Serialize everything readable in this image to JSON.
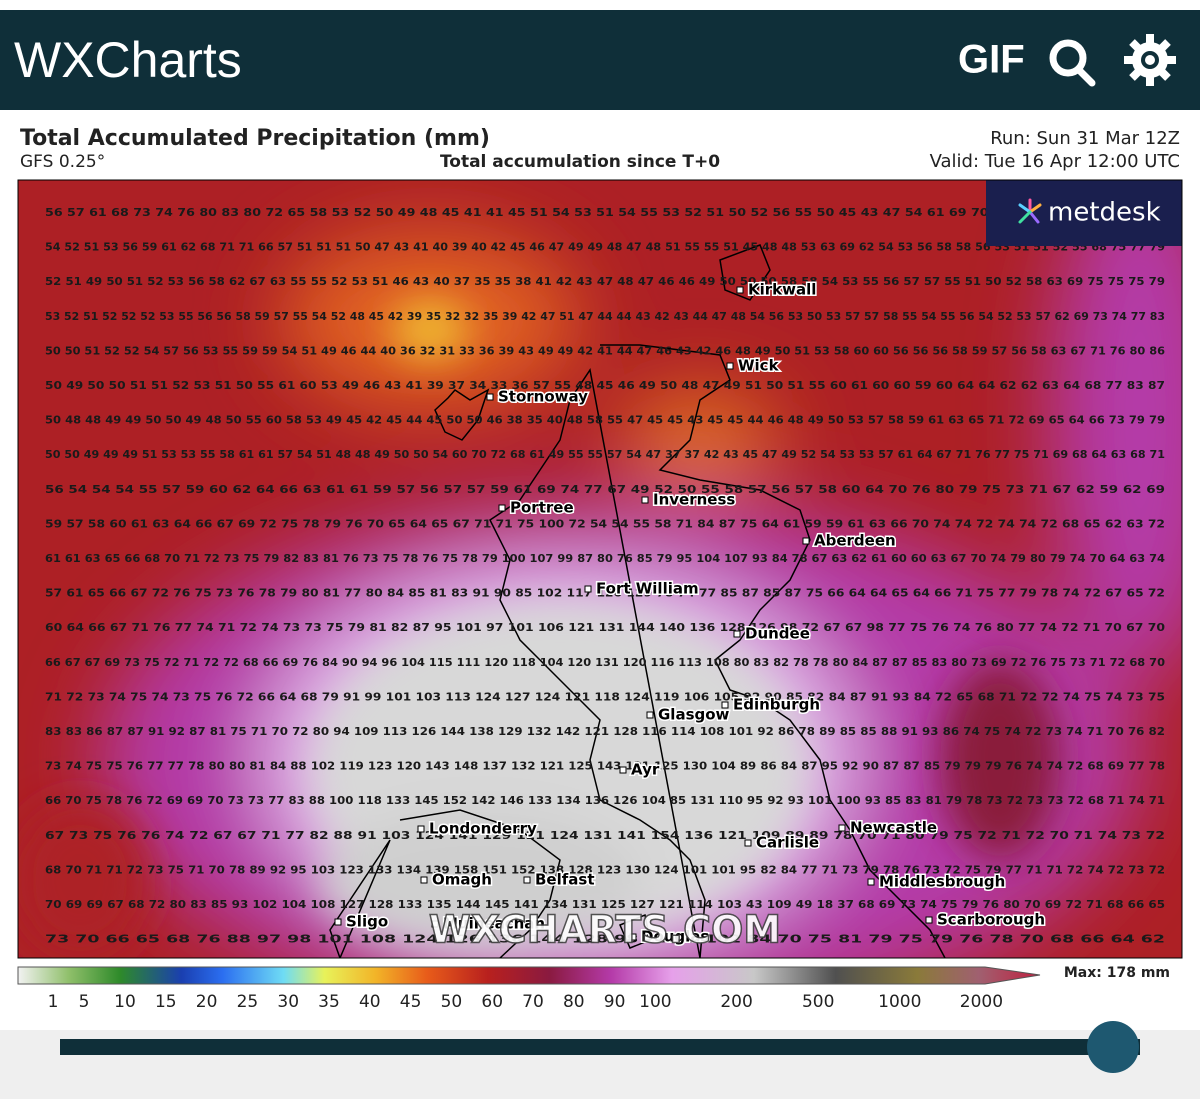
{
  "header": {
    "logo": "WXCharts",
    "gif": "GIF"
  },
  "map": {
    "title": "Total Accumulated Precipitation (mm)",
    "model": "GFS 0.25°",
    "subtitle": "Total accumulation since T+0",
    "run": "Run: Sun 31 Mar 12Z",
    "valid": "Valid: Tue 16 Apr 12:00 UTC",
    "brand": "metdesk",
    "watermark": "WXCHARTS.COM",
    "max": "Max: 178 mm",
    "cities": [
      "Kirkwall",
      "Wick",
      "Stornoway",
      "Inverness",
      "Portree",
      "Aberdeen",
      "Fort William",
      "Dundee",
      "Glasgow",
      "Edinburgh",
      "Ayr",
      "Londonderry",
      "Newcastle",
      "Carlisle",
      "Omagh",
      "Belfast",
      "Middlesbrough",
      "Sligo",
      "Muineachan",
      "Douglas",
      "Scarborough"
    ],
    "scale_labels": [
      1,
      5,
      10,
      15,
      20,
      25,
      30,
      35,
      40,
      45,
      50,
      60,
      70,
      80,
      90,
      100,
      200,
      500,
      1000,
      2000
    ],
    "grid_rows": [
      "56 57 61 68 73 74 76 80 83 80 72 65 58 53 52 50 49 48 45 41 41 45 51 54 53 51 54 55 53 52 51 50 52 56 55 50 45 43 47 54 61 69 70 62 57 57 57 57 55 54 53",
      "54 52 51 53 56 59 61 62 68 71 71 66 57 51 51 51 50 47 43 41 40 39 40 42 45 46 47 49 49 48 47 48 51 55 55 51 45 48 48 53 63 69 62 54 53 56 58 58 56 53 51 51 52 55 68 75 77 79",
      "52 51 49 50 51 52 53 56 58 62 67 63 55 55 52 53 51 46 43 40 37 35 35 38 41 42 43 47 48 47 46 46 49 50 50 50 58 58 54 53 55 56 57 57 55 51 50 52 58 63 69 75 75 75 79",
      "53 52 51 52 52 52 53 55 56 56 58 59 57 55 54 52 48 45 42 39 35 32 32 35 39 42 47 51 47 44 44 43 42 43 44 47 48 54 56 53 50 53 57 57 58 55 54 55 56 54 52 53 57 62 69 73 74 77 83",
      "50 50 51 52 52 54 57 56 53 55 59 59 54 51 49 46 44 40 36 32 31 33 36 39 43 49 49 42 41 44 47 46 43 42 46 48 49 50 51 53 58 60 60 56 56 56 58 59 57 56 58 63 67 71 76 80 86",
      "50 49 50 50 51 51 52 53 51 50 55 61 60 53 49 46 43 41 39 37 34 33 36 57 55 48 45 46 49 50 48 47 49 51 50 51 55 60 61 60 60 59 60 64 64 62 62 63 64 68 77 83 87",
      "50 48 48 49 49 50 50 49 48 50 55 60 58 53 49 45 42 45 44 45 50 50 46 38 35 40 48 58 55 47 45 45 43 45 45 44 46 48 49 50 53 57 58 59 61 63 65 71 72 69 65 64 66 73 79 79",
      "50 50 49 49 49 51 53 53 55 58 61 61 57 54 51 48 48 49 50 50 54 60 70 72 68 61 49 55 55 57 54 47 37 37 42 43 45 47 49 52 54 53 53 57 61 64 67 71 76 77 75 71 69 68 64 63 68 71",
      "56 54 54 54 55 57 59 60 62 64 66 63 61 61 59 57 56 57 57 59 61 69 74 77 67 49 52 50 55 58 57 56 57 58 60 64 70 76 80 79 75 73 71 67 62 59 62 69",
      "59 57 58 60 61 63 64 66 67 69 72 75 78 79 76 70 65 64 65 67 71 71 75 100 72 54 54 55 58 71 84 87 75 64 61 59 59 61 63 66 70 74 74 72 74 74 72 68 65 62 63 72",
      "61 61 63 65 66 68 70 71 72 73 75 79 82 83 81 76 73 75 78 76 75 78 79 100 107 99 87 80 76 85 79 95 104 107 93 84 78 67 63 62 61 60 60 63 67 70 74 79 80 79 74 70 64 63 74",
      "57 61 65 66 67 72 76 75 73 76 78 79 80 81 77 80 84 85 81 83 91 90 85 102 117 126 129 78 74 77 85 87 85 87 75 66 64 64 65 64 66 71 75 77 79 78 74 72 67 65 72",
      "60 64 66 67 71 76 77 74 71 72 74 73 73 75 79 81 82 87 95 101 97 101 106 121 131 144 140 136 128 126 98 72 67 67 98 77 75 76 74 76 80 77 74 72 71 70 67 70",
      "66 67 67 69 73 75 72 71 72 72 68 66 69 76 84 90 94 96 104 115 111 120 118 104 120 131 120 116 113 108 80 83 82 78 78 80 84 87 87 85 83 80 73 69 72 76 75 73 71 72 68 70",
      "71 72 73 74 75 74 73 75 76 72 66 64 68 79 91 99 101 103 113 124 127 124 121 118 124 119 106 105 92 90 85 82 84 87 91 93 84 72 65 68 71 72 72 74 75 74 73 75",
      "83 83 86 87 87 91 92 87 81 75 71 70 72 80 94 109 113 126 144 138 129 132 142 121 128 116 114 108 101 92 86 78 89 85 85 88 91 93 86 74 75 74 72 73 74 71 70 76 82",
      "73 74 75 75 76 77 77 78 80 80 81 84 88 102 119 123 120 143 148 137 132 121 125 143 131 125 130 104 89 86 84 87 95 92 90 87 87 85 79 79 79 76 74 74 72 68 69 77 78",
      "66 70 75 78 76 72 69 69 70 73 73 77 83 88 100 118 133 145 152 142 146 133 134 136 126 104 85 131 110 95 92 93 101 100 93 85 83 81 79 78 73 72 73 73 72 68 71 74 71",
      "67 73 75 76 76 74 72 67 67 71 77 82 88 91 103 124 141 129 121 124 131 141 154 136 121 109 89 89 78 70 71 80 79 75 72 71 72 70 71 74 73 72",
      "68 70 71 71 72 73 75 71 70 78 89 92 95 103 123 133 134 139 158 151 152 138 128 123 130 124 101 101 95 82 84 77 71 73 79 78 76 73 72 75 79 77 71 71 72 74 72 73 72",
      "70 69 69 67 68 72 80 83 85 93 102 104 108 127 128 133 135 144 145 141 134 131 125 127 121 114 103 43 109 49 18 37 68 69 73 74 75 79 76 80 70 69 72 71 68 66 65",
      "73 70 66 65 68 76 88 97 98 101 108 124 126 136 144 128 98 70 71 102 84 70 75 81 79 75 79 76 78 70 68 66 64 62"
    ]
  }
}
